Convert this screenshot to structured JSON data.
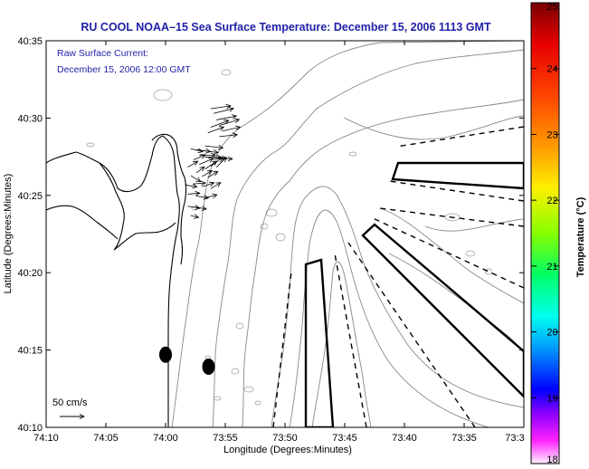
{
  "title": "RU COOL  NOAA–15  Sea Surface Temperature:  December 15, 2006 1113 GMT",
  "overlay": {
    "line1": "Raw Surface Current:",
    "line2": "December 15, 2006 12:00 GMT"
  },
  "axes": {
    "xlabel": "Longitude (Degrees:Minutes)",
    "ylabel": "Latitude (Degrees:Minutes)",
    "x_ticks": [
      "74:10",
      "74:05",
      "74:00",
      "73:55",
      "73:50",
      "73:45",
      "73:40",
      "73:35",
      "73:3"
    ],
    "y_ticks": [
      "40:35",
      "40:30",
      "40:25",
      "40:20",
      "40:15",
      "40:10"
    ]
  },
  "scale_arrow": {
    "label": "50 cm/s"
  },
  "colorbar": {
    "title": "Temperature (°C)",
    "ticks": [
      "25",
      "24",
      "23",
      "22",
      "21",
      "20",
      "19",
      "18"
    ],
    "colors": [
      "#8b0000",
      "#ff0000",
      "#ff8800",
      "#ffff00",
      "#88ff00",
      "#00ff66",
      "#00ffff",
      "#0088ff",
      "#0000ff",
      "#8800ff",
      "#ff00ff",
      "#ffffff"
    ]
  },
  "markers": [
    {
      "name": "filled-dot",
      "lon": -74.0,
      "lat": 40.245
    },
    {
      "name": "filled-dot",
      "lon": -73.94,
      "lat": 40.232
    }
  ],
  "current_vectors": [
    {
      "lon": -73.937,
      "lat": 40.51,
      "u": 1.0,
      "v": 0.15
    },
    {
      "lon": -73.933,
      "lat": 40.505,
      "u": 1.0,
      "v": 0.25
    },
    {
      "lon": -73.929,
      "lat": 40.498,
      "u": 1.0,
      "v": 0.2
    },
    {
      "lon": -73.925,
      "lat": 40.492,
      "u": 1.0,
      "v": 0.3
    },
    {
      "lon": -73.921,
      "lat": 40.486,
      "u": 0.9,
      "v": 0.2
    },
    {
      "lon": -73.937,
      "lat": 40.49,
      "u": 0.9,
      "v": 0.35
    },
    {
      "lon": -73.941,
      "lat": 40.484,
      "u": 0.8,
      "v": 0.3
    },
    {
      "lon": -73.925,
      "lat": 40.48,
      "u": 0.9,
      "v": 0.1
    },
    {
      "lon": -73.945,
      "lat": 40.47,
      "u": 0.9,
      "v": -0.1
    },
    {
      "lon": -73.949,
      "lat": 40.465,
      "u": 0.8,
      "v": -0.1
    },
    {
      "lon": -73.957,
      "lat": 40.466,
      "u": 0.7,
      "v": -0.1
    },
    {
      "lon": -73.965,
      "lat": 40.467,
      "u": 0.6,
      "v": -0.15
    },
    {
      "lon": -73.953,
      "lat": 40.46,
      "u": 0.8,
      "v": 0.0
    },
    {
      "lon": -73.945,
      "lat": 40.458,
      "u": 0.8,
      "v": 0.0
    },
    {
      "lon": -73.937,
      "lat": 40.456,
      "u": 0.8,
      "v": 0.05
    },
    {
      "lon": -73.929,
      "lat": 40.456,
      "u": 0.8,
      "v": 0.0
    },
    {
      "lon": -73.961,
      "lat": 40.455,
      "u": 0.6,
      "v": 0.25
    },
    {
      "lon": -73.969,
      "lat": 40.447,
      "u": 0.5,
      "v": 0.3
    },
    {
      "lon": -73.953,
      "lat": 40.45,
      "u": 0.7,
      "v": 0.3
    },
    {
      "lon": -73.945,
      "lat": 40.445,
      "u": 0.6,
      "v": 0.4
    },
    {
      "lon": -73.937,
      "lat": 40.448,
      "u": 0.6,
      "v": 0.45
    },
    {
      "lon": -73.929,
      "lat": 40.447,
      "u": 0.5,
      "v": 0.5
    },
    {
      "lon": -73.965,
      "lat": 40.438,
      "u": 0.5,
      "v": -0.3
    },
    {
      "lon": -73.957,
      "lat": 40.441,
      "u": 0.4,
      "v": 0.3
    },
    {
      "lon": -73.949,
      "lat": 40.437,
      "u": 0.5,
      "v": 0.3
    },
    {
      "lon": -73.941,
      "lat": 40.436,
      "u": 0.5,
      "v": 0.3
    },
    {
      "lon": -73.973,
      "lat": 40.428,
      "u": 0.6,
      "v": -0.1
    },
    {
      "lon": -73.961,
      "lat": 40.429,
      "u": 0.6,
      "v": 0.05
    },
    {
      "lon": -73.949,
      "lat": 40.426,
      "u": 0.6,
      "v": 0.2
    },
    {
      "lon": -73.937,
      "lat": 40.424,
      "u": 0.5,
      "v": 0.3
    },
    {
      "lon": -73.969,
      "lat": 40.418,
      "u": 0.6,
      "v": 0.05
    },
    {
      "lon": -73.957,
      "lat": 40.416,
      "u": 0.6,
      "v": -0.1
    },
    {
      "lon": -73.945,
      "lat": 40.414,
      "u": 0.6,
      "v": 0.15
    },
    {
      "lon": -73.969,
      "lat": 40.405,
      "u": 0.6,
      "v": -0.1
    },
    {
      "lon": -73.957,
      "lat": 40.404,
      "u": 0.5,
      "v": -0.1
    },
    {
      "lon": -73.965,
      "lat": 40.395,
      "u": 0.4,
      "v": -0.1
    }
  ]
}
